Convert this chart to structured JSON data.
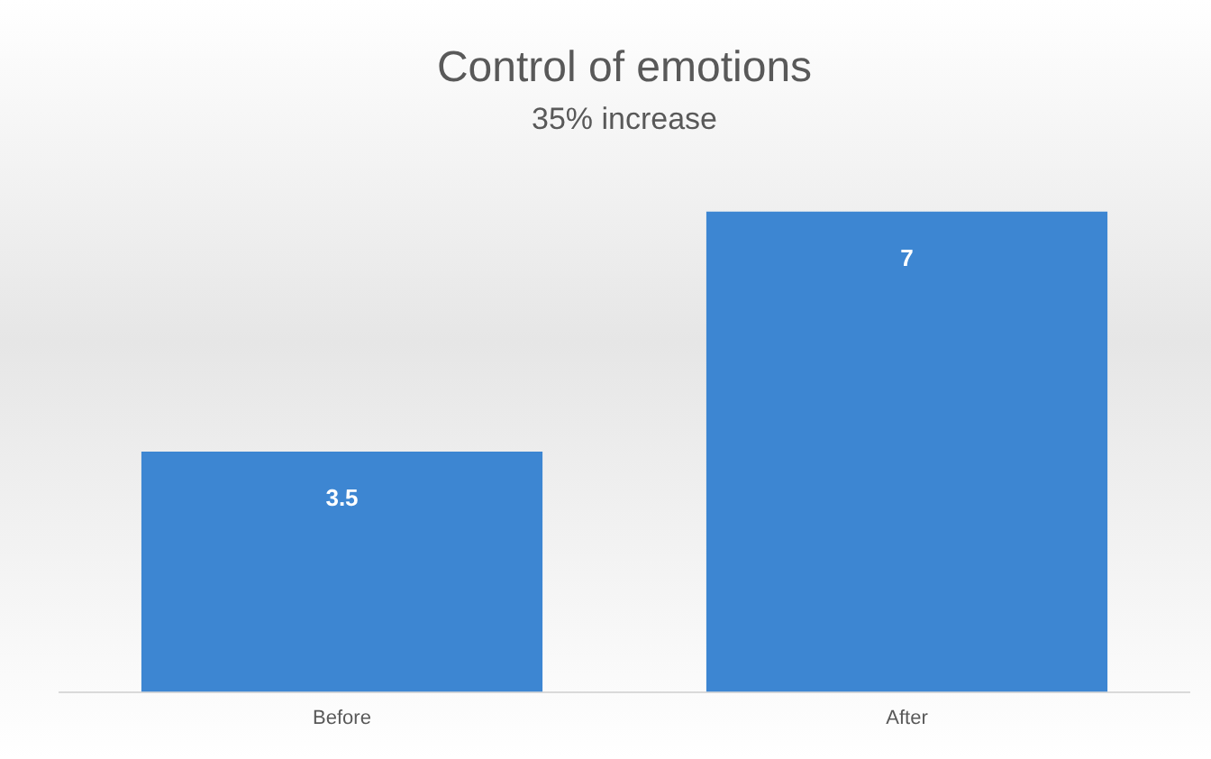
{
  "chart_data": {
    "type": "bar",
    "title": "Control of emotions",
    "subtitle": "35% increase",
    "categories": [
      "Before",
      "After"
    ],
    "values": [
      3.5,
      7
    ],
    "color": "#3d86d2",
    "data_labels": true,
    "grid": false,
    "legend": false
  }
}
